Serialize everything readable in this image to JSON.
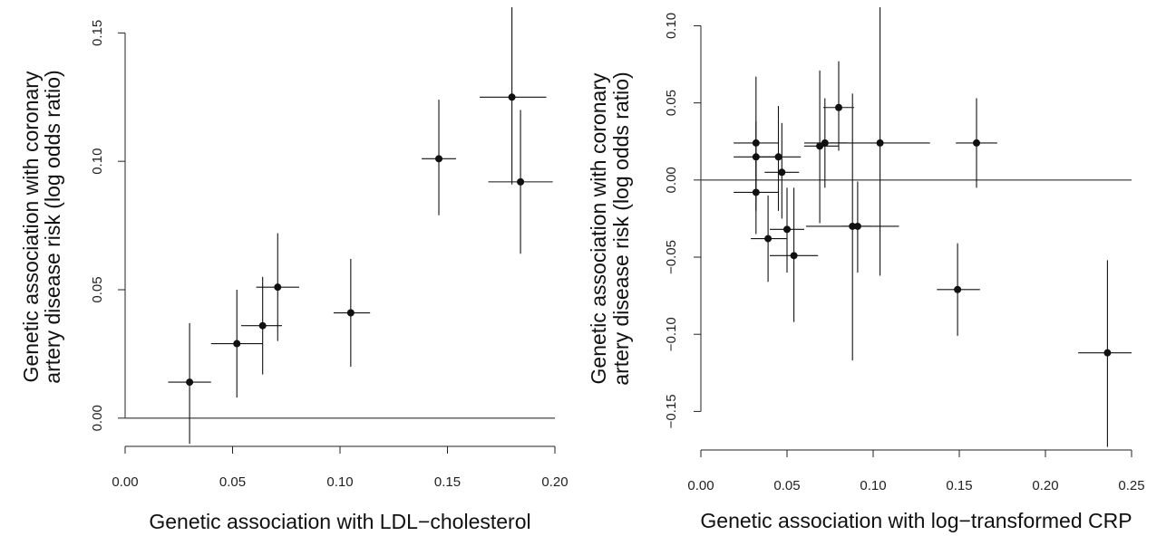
{
  "chart_data": [
    {
      "type": "scatter",
      "xlabel": "Genetic association with LDL−cholesterol",
      "ylabel": [
        "Genetic association with coronary",
        "artery disease risk (log odds ratio)"
      ],
      "xlim": [
        0,
        0.2
      ],
      "ylim": [
        -0.011,
        0.16
      ],
      "x_ticks": [
        "0.00",
        "0.05",
        "0.10",
        "0.15",
        "0.20"
      ],
      "y_ticks": [
        "0.00",
        "0.05",
        "0.10",
        "0.15"
      ],
      "x_tick_values": [
        0,
        0.05,
        0.1,
        0.15,
        0.2
      ],
      "y_tick_values": [
        0,
        0.05,
        0.1,
        0.15
      ],
      "reference_line_y": 0,
      "points": [
        {
          "x": 0.03,
          "y": 0.014,
          "x_lo": 0.02,
          "x_hi": 0.04,
          "y_lo": -0.01,
          "y_hi": 0.037
        },
        {
          "x": 0.052,
          "y": 0.029,
          "x_lo": 0.04,
          "x_hi": 0.064,
          "y_lo": 0.008,
          "y_hi": 0.05
        },
        {
          "x": 0.064,
          "y": 0.036,
          "x_lo": 0.054,
          "x_hi": 0.073,
          "y_lo": 0.017,
          "y_hi": 0.055
        },
        {
          "x": 0.071,
          "y": 0.051,
          "x_lo": 0.061,
          "x_hi": 0.081,
          "y_lo": 0.03,
          "y_hi": 0.072
        },
        {
          "x": 0.105,
          "y": 0.041,
          "x_lo": 0.097,
          "x_hi": 0.114,
          "y_lo": 0.02,
          "y_hi": 0.062
        },
        {
          "x": 0.146,
          "y": 0.101,
          "x_lo": 0.138,
          "x_hi": 0.154,
          "y_lo": 0.079,
          "y_hi": 0.124
        },
        {
          "x": 0.18,
          "y": 0.125,
          "x_lo": 0.165,
          "x_hi": 0.196,
          "y_lo": 0.091,
          "y_hi": 0.16
        },
        {
          "x": 0.184,
          "y": 0.092,
          "x_lo": 0.169,
          "x_hi": 0.199,
          "y_lo": 0.064,
          "y_hi": 0.12
        }
      ]
    },
    {
      "type": "scatter",
      "xlabel": "Genetic association with log−transformed CRP",
      "ylabel": [
        "Genetic association with coronary",
        "artery disease risk (log odds ratio)"
      ],
      "xlim": [
        0,
        0.25
      ],
      "ylim": [
        -0.175,
        0.112
      ],
      "x_ticks": [
        "0.00",
        "0.05",
        "0.10",
        "0.15",
        "0.20",
        "0.25"
      ],
      "y_ticks": [
        "−0.15",
        "−0.10",
        "−0.05",
        "0.00",
        "0.05",
        "0.10"
      ],
      "x_tick_values": [
        0,
        0.05,
        0.1,
        0.15,
        0.2,
        0.25
      ],
      "y_tick_values": [
        -0.15,
        -0.1,
        -0.05,
        0,
        0.05,
        0.1
      ],
      "reference_line_y": 0,
      "points": [
        {
          "x": 0.032,
          "y": 0.024,
          "x_lo": 0.019,
          "x_hi": 0.045,
          "y_lo": -0.02,
          "y_hi": 0.067
        },
        {
          "x": 0.032,
          "y": 0.015,
          "x_lo": 0.019,
          "x_hi": 0.045,
          "y_lo": -0.01,
          "y_hi": 0.038
        },
        {
          "x": 0.032,
          "y": -0.008,
          "x_lo": 0.019,
          "x_hi": 0.045,
          "y_lo": -0.035,
          "y_hi": 0.018
        },
        {
          "x": 0.045,
          "y": 0.015,
          "x_lo": 0.032,
          "x_hi": 0.058,
          "y_lo": -0.02,
          "y_hi": 0.048
        },
        {
          "x": 0.047,
          "y": 0.005,
          "x_lo": 0.037,
          "x_hi": 0.057,
          "y_lo": -0.025,
          "y_hi": 0.037
        },
        {
          "x": 0.039,
          "y": -0.038,
          "x_lo": 0.029,
          "x_hi": 0.05,
          "y_lo": -0.066,
          "y_hi": -0.01
        },
        {
          "x": 0.05,
          "y": -0.032,
          "x_lo": 0.04,
          "x_hi": 0.06,
          "y_lo": -0.06,
          "y_hi": -0.005
        },
        {
          "x": 0.054,
          "y": -0.049,
          "x_lo": 0.04,
          "x_hi": 0.068,
          "y_lo": -0.092,
          "y_hi": -0.005
        },
        {
          "x": 0.069,
          "y": 0.022,
          "x_lo": 0.06,
          "x_hi": 0.08,
          "y_lo": -0.028,
          "y_hi": 0.071
        },
        {
          "x": 0.072,
          "y": 0.024,
          "x_lo": 0.06,
          "x_hi": 0.085,
          "y_lo": -0.005,
          "y_hi": 0.053
        },
        {
          "x": 0.08,
          "y": 0.047,
          "x_lo": 0.071,
          "x_hi": 0.089,
          "y_lo": 0.019,
          "y_hi": 0.077
        },
        {
          "x": 0.088,
          "y": -0.03,
          "x_lo": 0.061,
          "x_hi": 0.115,
          "y_lo": -0.117,
          "y_hi": 0.056
        },
        {
          "x": 0.091,
          "y": -0.03,
          "x_lo": 0.082,
          "x_hi": 0.099,
          "y_lo": -0.06,
          "y_hi": -0.001
        },
        {
          "x": 0.104,
          "y": 0.024,
          "x_lo": 0.075,
          "x_hi": 0.133,
          "y_lo": -0.062,
          "y_hi": 0.112
        },
        {
          "x": 0.149,
          "y": -0.071,
          "x_lo": 0.137,
          "x_hi": 0.162,
          "y_lo": -0.101,
          "y_hi": -0.041
        },
        {
          "x": 0.16,
          "y": 0.024,
          "x_lo": 0.148,
          "x_hi": 0.172,
          "y_lo": -0.005,
          "y_hi": 0.053
        },
        {
          "x": 0.236,
          "y": -0.112,
          "x_lo": 0.219,
          "x_hi": 0.254,
          "y_lo": -0.173,
          "y_hi": -0.052
        }
      ]
    }
  ]
}
